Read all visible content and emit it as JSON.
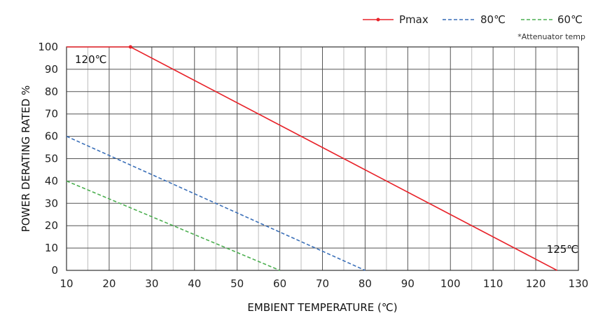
{
  "chart_data": {
    "type": "line",
    "title": "",
    "xlabel": "EMBIENT TEMPERATURE (℃)",
    "ylabel": "POWER DERATING RATED %",
    "xlim": [
      10,
      130
    ],
    "ylim": [
      0,
      100
    ],
    "xticks": [
      10,
      20,
      30,
      40,
      50,
      60,
      70,
      80,
      90,
      100,
      110,
      120,
      130
    ],
    "yticks": [
      0,
      10,
      20,
      30,
      40,
      50,
      60,
      70,
      80,
      90,
      100
    ],
    "x_minor_step": 5,
    "grid": true,
    "legend_position": "top-right",
    "note": "*Attenuator temp",
    "series": [
      {
        "name": "Pmax",
        "color": "#e8232a",
        "style": "solid",
        "marker": "dot",
        "points": [
          [
            10,
            100
          ],
          [
            25,
            100
          ],
          [
            125,
            0
          ]
        ]
      },
      {
        "name": "80℃",
        "color": "#3a6fb8",
        "style": "dashed",
        "points": [
          [
            10,
            60
          ],
          [
            80,
            0
          ]
        ]
      },
      {
        "name": "60℃",
        "color": "#4caf50",
        "style": "dashed",
        "points": [
          [
            10,
            40
          ],
          [
            60,
            0
          ]
        ]
      }
    ],
    "annotations": [
      {
        "text": "120℃",
        "x": 10,
        "y": 100
      },
      {
        "text": "125℃",
        "x": 125,
        "y": 0
      }
    ]
  }
}
